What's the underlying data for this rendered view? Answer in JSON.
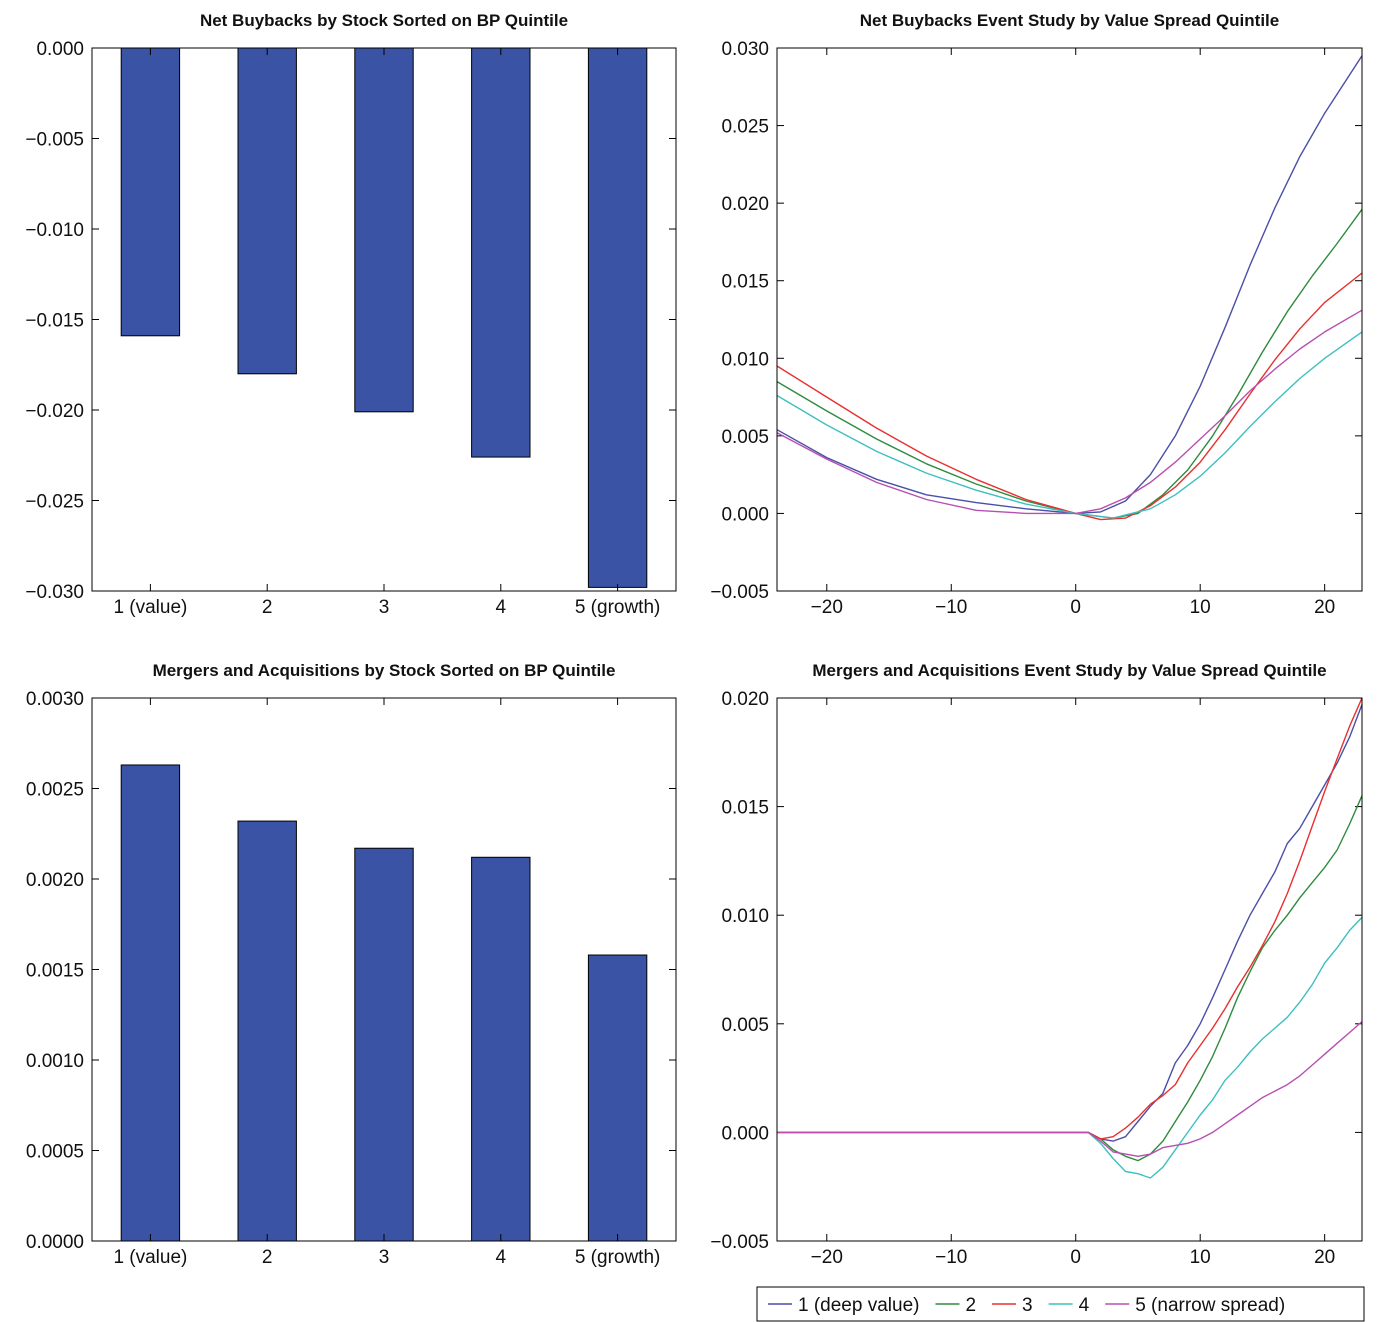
{
  "chart_data": [
    {
      "type": "bar",
      "title": "Net Buybacks by Stock Sorted on BP Quintile",
      "categories": [
        "1 (value)",
        "2",
        "3",
        "4",
        "5 (growth)"
      ],
      "values": [
        -0.0159,
        -0.018,
        -0.0201,
        -0.0226,
        -0.0298
      ],
      "ylim": [
        -0.03,
        0.0
      ],
      "yticks": [
        0.0,
        -0.005,
        -0.01,
        -0.015,
        -0.02,
        -0.025,
        -0.03
      ],
      "ytick_labels": [
        "0.000",
        "−0.005",
        "−0.010",
        "−0.015",
        "−0.020",
        "−0.025",
        "−0.030"
      ],
      "bar_color": "#3a53a4"
    },
    {
      "type": "line",
      "title": "Net Buybacks Event Study by Value Spread Quintile",
      "xlim": [
        -24,
        23
      ],
      "ylim": [
        -0.005,
        0.03
      ],
      "xticks": [
        -20,
        -10,
        0,
        10,
        20
      ],
      "xtick_labels": [
        "−20",
        "−10",
        "0",
        "10",
        "20"
      ],
      "yticks": [
        -0.005,
        0.0,
        0.005,
        0.01,
        0.015,
        0.02,
        0.025,
        0.03
      ],
      "ytick_labels": [
        "−0.005",
        "0.000",
        "0.005",
        "0.010",
        "0.015",
        "0.020",
        "0.025",
        "0.030"
      ],
      "series": [
        {
          "name": "1 (deep value)",
          "color": "#4a4fa8",
          "points": [
            [
              -24,
              0.0054
            ],
            [
              -20,
              0.0036
            ],
            [
              -16,
              0.0022
            ],
            [
              -12,
              0.0012
            ],
            [
              -8,
              0.0007
            ],
            [
              -4,
              0.0003
            ],
            [
              0,
              0.0
            ],
            [
              2,
              0.0001
            ],
            [
              4,
              0.0008
            ],
            [
              6,
              0.0025
            ],
            [
              8,
              0.005
            ],
            [
              10,
              0.0082
            ],
            [
              12,
              0.012
            ],
            [
              14,
              0.016
            ],
            [
              16,
              0.0197
            ],
            [
              18,
              0.023
            ],
            [
              20,
              0.0258
            ],
            [
              23,
              0.0295
            ]
          ]
        },
        {
          "name": "2",
          "color": "#2e8b3e",
          "points": [
            [
              -24,
              0.0085
            ],
            [
              -20,
              0.0066
            ],
            [
              -16,
              0.0048
            ],
            [
              -12,
              0.0032
            ],
            [
              -8,
              0.0019
            ],
            [
              -4,
              0.0008
            ],
            [
              0,
              0.0
            ],
            [
              3,
              -0.0003
            ],
            [
              5,
              0.0
            ],
            [
              7,
              0.0012
            ],
            [
              9,
              0.0028
            ],
            [
              11,
              0.005
            ],
            [
              13,
              0.0076
            ],
            [
              15,
              0.0104
            ],
            [
              17,
              0.013
            ],
            [
              19,
              0.0153
            ],
            [
              21,
              0.0174
            ],
            [
              23,
              0.0196
            ]
          ]
        },
        {
          "name": "3",
          "color": "#e8302f",
          "points": [
            [
              -24,
              0.0095
            ],
            [
              -20,
              0.0075
            ],
            [
              -16,
              0.0055
            ],
            [
              -12,
              0.0037
            ],
            [
              -8,
              0.0022
            ],
            [
              -4,
              0.0009
            ],
            [
              0,
              0.0
            ],
            [
              2,
              -0.0004
            ],
            [
              4,
              -0.0003
            ],
            [
              6,
              0.0005
            ],
            [
              8,
              0.0017
            ],
            [
              10,
              0.0033
            ],
            [
              12,
              0.0054
            ],
            [
              14,
              0.0077
            ],
            [
              16,
              0.0099
            ],
            [
              18,
              0.0119
            ],
            [
              20,
              0.0136
            ],
            [
              23,
              0.0155
            ]
          ]
        },
        {
          "name": "4",
          "color": "#3fbfc0",
          "points": [
            [
              -24,
              0.0076
            ],
            [
              -20,
              0.0057
            ],
            [
              -16,
              0.004
            ],
            [
              -12,
              0.0026
            ],
            [
              -8,
              0.0015
            ],
            [
              -4,
              0.0006
            ],
            [
              0,
              0.0
            ],
            [
              3,
              -0.0003
            ],
            [
              6,
              0.0003
            ],
            [
              8,
              0.0012
            ],
            [
              10,
              0.0024
            ],
            [
              12,
              0.0039
            ],
            [
              14,
              0.0056
            ],
            [
              16,
              0.0072
            ],
            [
              18,
              0.0087
            ],
            [
              20,
              0.01
            ],
            [
              23,
              0.0117
            ]
          ]
        },
        {
          "name": "5 (narrow spread)",
          "color": "#b84fb0",
          "points": [
            [
              -24,
              0.0052
            ],
            [
              -20,
              0.0035
            ],
            [
              -16,
              0.002
            ],
            [
              -12,
              0.0009
            ],
            [
              -8,
              0.0002
            ],
            [
              -4,
              0.0
            ],
            [
              0,
              0.0
            ],
            [
              2,
              0.0003
            ],
            [
              4,
              0.001
            ],
            [
              6,
              0.002
            ],
            [
              8,
              0.0033
            ],
            [
              10,
              0.0048
            ],
            [
              12,
              0.0063
            ],
            [
              14,
              0.0079
            ],
            [
              16,
              0.0093
            ],
            [
              18,
              0.0106
            ],
            [
              20,
              0.0117
            ],
            [
              23,
              0.0131
            ]
          ]
        }
      ]
    },
    {
      "type": "bar",
      "title": "Mergers and Acquisitions by Stock Sorted on BP Quintile",
      "categories": [
        "1 (value)",
        "2",
        "3",
        "4",
        "5 (growth)"
      ],
      "values": [
        0.00263,
        0.00232,
        0.00217,
        0.00212,
        0.00158
      ],
      "ylim": [
        0.0,
        0.003
      ],
      "yticks": [
        0.0,
        0.0005,
        0.001,
        0.0015,
        0.002,
        0.0025,
        0.003
      ],
      "ytick_labels": [
        "0.0000",
        "0.0005",
        "0.0010",
        "0.0015",
        "0.0020",
        "0.0025",
        "0.0030"
      ],
      "bar_color": "#3a53a4"
    },
    {
      "type": "line",
      "title": "Mergers and Acquisitions Event Study by Value Spread Quintile",
      "xlim": [
        -24,
        23
      ],
      "ylim": [
        -0.005,
        0.02
      ],
      "xticks": [
        -20,
        -10,
        0,
        10,
        20
      ],
      "xtick_labels": [
        "−20",
        "−10",
        "0",
        "10",
        "20"
      ],
      "yticks": [
        -0.005,
        0.0,
        0.005,
        0.01,
        0.015,
        0.02
      ],
      "ytick_labels": [
        "−0.005",
        "0.000",
        "0.005",
        "0.010",
        "0.015",
        "0.020"
      ],
      "legend": {
        "position": "bottom-right-outside"
      },
      "series": [
        {
          "name": "1 (deep value)",
          "color": "#4a4fa8",
          "points": [
            [
              -24,
              0.0
            ],
            [
              0,
              0.0
            ],
            [
              1,
              0.0
            ],
            [
              2,
              -0.0003
            ],
            [
              3,
              -0.0004
            ],
            [
              4,
              -0.0002
            ],
            [
              5,
              0.0005
            ],
            [
              6,
              0.0012
            ],
            [
              7,
              0.0018
            ],
            [
              8,
              0.0032
            ],
            [
              9,
              0.004
            ],
            [
              10,
              0.005
            ],
            [
              11,
              0.0062
            ],
            [
              12,
              0.0075
            ],
            [
              13,
              0.0088
            ],
            [
              14,
              0.01
            ],
            [
              15,
              0.011
            ],
            [
              16,
              0.012
            ],
            [
              17,
              0.0133
            ],
            [
              18,
              0.014
            ],
            [
              19,
              0.015
            ],
            [
              20,
              0.016
            ],
            [
              21,
              0.017
            ],
            [
              22,
              0.0182
            ],
            [
              23,
              0.0197
            ]
          ]
        },
        {
          "name": "2",
          "color": "#2e8b3e",
          "points": [
            [
              -24,
              0.0
            ],
            [
              0,
              0.0
            ],
            [
              1,
              0.0
            ],
            [
              2,
              -0.0003
            ],
            [
              3,
              -0.0008
            ],
            [
              4,
              -0.0011
            ],
            [
              5,
              -0.0013
            ],
            [
              6,
              -0.001
            ],
            [
              7,
              -0.0004
            ],
            [
              8,
              0.0005
            ],
            [
              9,
              0.0014
            ],
            [
              10,
              0.0024
            ],
            [
              11,
              0.0035
            ],
            [
              12,
              0.0048
            ],
            [
              13,
              0.0062
            ],
            [
              14,
              0.0074
            ],
            [
              15,
              0.0085
            ],
            [
              16,
              0.0093
            ],
            [
              17,
              0.01
            ],
            [
              18,
              0.0108
            ],
            [
              19,
              0.0115
            ],
            [
              20,
              0.0122
            ],
            [
              21,
              0.013
            ],
            [
              22,
              0.0142
            ],
            [
              23,
              0.0155
            ]
          ]
        },
        {
          "name": "3",
          "color": "#e8302f",
          "points": [
            [
              -24,
              0.0
            ],
            [
              0,
              0.0
            ],
            [
              1,
              0.0
            ],
            [
              2,
              -0.0003
            ],
            [
              3,
              -0.0002
            ],
            [
              4,
              0.0002
            ],
            [
              5,
              0.0007
            ],
            [
              6,
              0.0013
            ],
            [
              7,
              0.0017
            ],
            [
              8,
              0.0022
            ],
            [
              9,
              0.0032
            ],
            [
              10,
              0.004
            ],
            [
              11,
              0.0048
            ],
            [
              12,
              0.0057
            ],
            [
              13,
              0.0067
            ],
            [
              14,
              0.0076
            ],
            [
              15,
              0.0086
            ],
            [
              16,
              0.0097
            ],
            [
              17,
              0.011
            ],
            [
              18,
              0.0125
            ],
            [
              19,
              0.0141
            ],
            [
              20,
              0.0157
            ],
            [
              21,
              0.0172
            ],
            [
              22,
              0.0187
            ],
            [
              23,
              0.02
            ]
          ]
        },
        {
          "name": "4",
          "color": "#3fbfc0",
          "points": [
            [
              -24,
              0.0
            ],
            [
              0,
              0.0
            ],
            [
              1,
              0.0
            ],
            [
              2,
              -0.0005
            ],
            [
              3,
              -0.0012
            ],
            [
              4,
              -0.0018
            ],
            [
              5,
              -0.0019
            ],
            [
              6,
              -0.0021
            ],
            [
              7,
              -0.0016
            ],
            [
              8,
              -0.0008
            ],
            [
              9,
              0.0
            ],
            [
              10,
              0.0008
            ],
            [
              11,
              0.0015
            ],
            [
              12,
              0.0024
            ],
            [
              13,
              0.003
            ],
            [
              14,
              0.0037
            ],
            [
              15,
              0.0043
            ],
            [
              16,
              0.0048
            ],
            [
              17,
              0.0053
            ],
            [
              18,
              0.006
            ],
            [
              19,
              0.0068
            ],
            [
              20,
              0.0078
            ],
            [
              21,
              0.0085
            ],
            [
              22,
              0.0093
            ],
            [
              23,
              0.0099
            ]
          ]
        },
        {
          "name": "5 (narrow spread)",
          "color": "#b84fb0",
          "points": [
            [
              -24,
              0.0
            ],
            [
              0,
              0.0
            ],
            [
              1,
              0.0
            ],
            [
              2,
              -0.0004
            ],
            [
              3,
              -0.0009
            ],
            [
              4,
              -0.001
            ],
            [
              5,
              -0.0011
            ],
            [
              6,
              -0.001
            ],
            [
              7,
              -0.0007
            ],
            [
              8,
              -0.0006
            ],
            [
              9,
              -0.0005
            ],
            [
              10,
              -0.0003
            ],
            [
              11,
              0.0
            ],
            [
              12,
              0.0004
            ],
            [
              13,
              0.0008
            ],
            [
              14,
              0.0012
            ],
            [
              15,
              0.0016
            ],
            [
              16,
              0.0019
            ],
            [
              17,
              0.0022
            ],
            [
              18,
              0.0026
            ],
            [
              19,
              0.0031
            ],
            [
              20,
              0.0036
            ],
            [
              21,
              0.0041
            ],
            [
              22,
              0.0046
            ],
            [
              23,
              0.0051
            ]
          ]
        }
      ]
    }
  ]
}
